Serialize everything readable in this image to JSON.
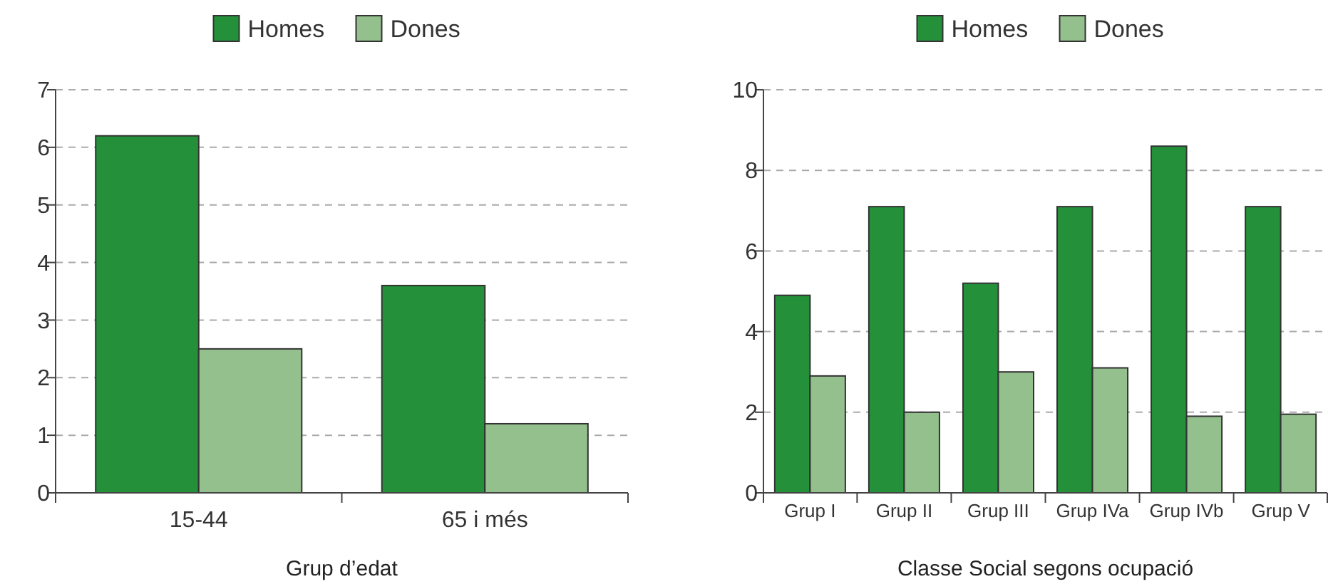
{
  "chart_data": [
    {
      "type": "bar",
      "xlabel": "Grup d’edat",
      "categories": [
        "15-44",
        "65 i més"
      ],
      "series": [
        {
          "name": "Homes",
          "color": "#24913a",
          "values": [
            6.2,
            3.6
          ]
        },
        {
          "name": "Dones",
          "color": "#93c08c",
          "values": [
            2.5,
            1.2
          ]
        }
      ],
      "ylim": [
        0,
        7
      ],
      "yticks": [
        0,
        1,
        2,
        3,
        4,
        5,
        6,
        7
      ],
      "grid": "y",
      "legend": "top"
    },
    {
      "type": "bar",
      "xlabel": "Classe Social segons ocupació",
      "categories": [
        "Grup I",
        "Grup II",
        "Grup III",
        "Grup IVa",
        "Grup IVb",
        "Grup V"
      ],
      "series": [
        {
          "name": "Homes",
          "color": "#24913a",
          "values": [
            4.9,
            7.1,
            5.2,
            7.1,
            8.6,
            7.1
          ]
        },
        {
          "name": "Dones",
          "color": "#93c08c",
          "values": [
            2.9,
            2.0,
            3.0,
            3.1,
            1.9,
            1.95
          ]
        }
      ],
      "ylim": [
        0,
        10
      ],
      "yticks": [
        0,
        2,
        4,
        6,
        8,
        10
      ],
      "grid": "y",
      "legend": "top"
    }
  ]
}
